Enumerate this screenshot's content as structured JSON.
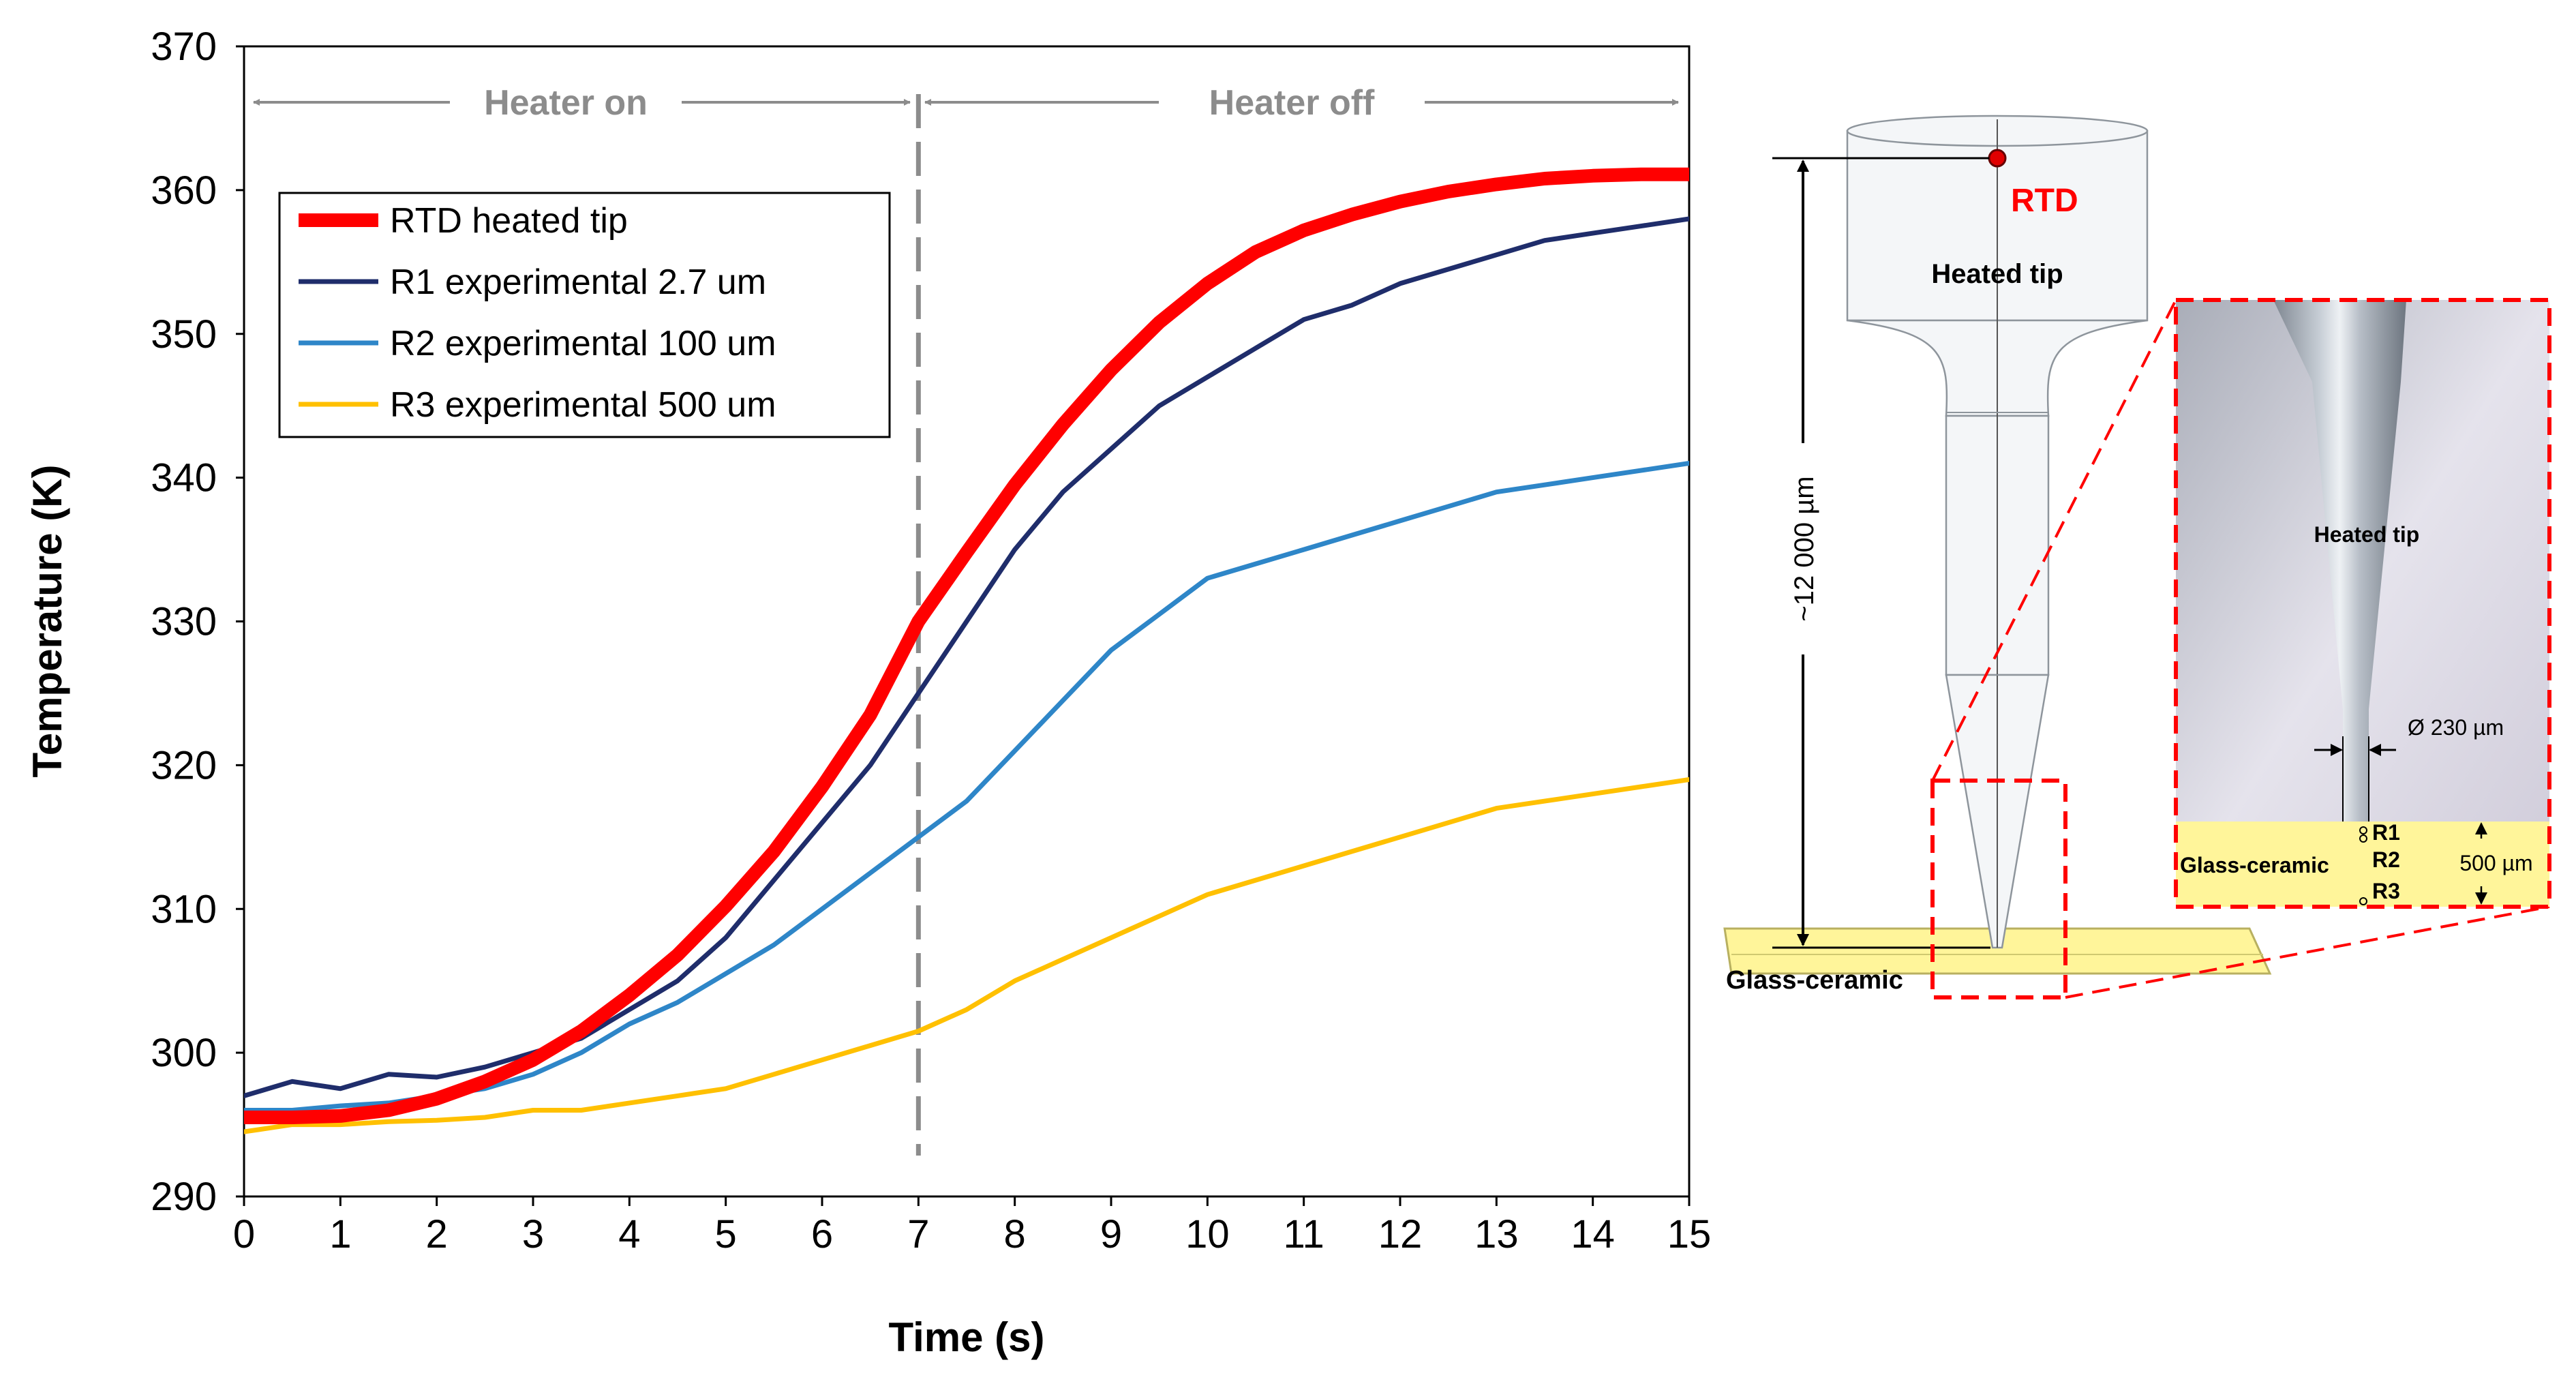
{
  "chart_data": {
    "type": "line",
    "xlabel": "Time (s)",
    "ylabel": "Temperature (K)",
    "xlim": [
      0,
      15
    ],
    "ylim": [
      290,
      370
    ],
    "xticks": [
      "0",
      "1",
      "2",
      "3",
      "4",
      "5",
      "6",
      "7",
      "8",
      "9",
      "10",
      "11",
      "12",
      "13",
      "14",
      "15"
    ],
    "yticks": [
      "290",
      "300",
      "310",
      "320",
      "330",
      "340",
      "350",
      "360",
      "370"
    ],
    "grid": false,
    "legend_position": "top-left",
    "vline_x": 7,
    "phase_labels": {
      "on": "Heater on",
      "off": "Heater off"
    },
    "series": [
      {
        "name": "RTD heated tip",
        "color": "#ff0000",
        "x": [
          0,
          0.5,
          1,
          1.5,
          2,
          2.5,
          3,
          3.5,
          4,
          4.5,
          5,
          5.5,
          6,
          6.5,
          7,
          7.5,
          8,
          8.5,
          9,
          9.5,
          10,
          10.5,
          11,
          11.5,
          12,
          12.5,
          13,
          13.5,
          14,
          14.5,
          15
        ],
        "y": [
          295.5,
          295.5,
          295.6,
          296,
          296.8,
          298,
          299.5,
          301.5,
          304,
          306.8,
          310.2,
          314,
          318.5,
          323.5,
          330,
          334.8,
          339.5,
          343.7,
          347.5,
          350.8,
          353.5,
          355.7,
          357.2,
          358.3,
          359.2,
          359.9,
          360.4,
          360.8,
          361.0,
          361.1,
          361.1
        ]
      },
      {
        "name": "R1 experimental 2.7 um",
        "color": "#1f2d6b",
        "x": [
          0,
          0.5,
          1,
          1.5,
          2,
          2.5,
          3,
          3.5,
          4,
          4.5,
          5,
          5.5,
          6,
          6.5,
          7,
          7.5,
          8,
          8.5,
          9,
          9.5,
          10,
          10.5,
          11,
          11.5,
          12,
          12.5,
          13,
          13.5,
          14,
          14.5,
          15
        ],
        "y": [
          297,
          298,
          297.5,
          298.5,
          298.3,
          299,
          300,
          301,
          303,
          305,
          308,
          312,
          316,
          320,
          325,
          330,
          335,
          339,
          342,
          345,
          347,
          349,
          351,
          352,
          353.5,
          354.5,
          355.5,
          356.5,
          357,
          357.5,
          358
        ]
      },
      {
        "name": "R2 experimental 100 um",
        "color": "#2e86c8",
        "x": [
          0,
          0.5,
          1,
          1.5,
          2,
          2.5,
          3,
          3.5,
          4,
          4.5,
          5,
          5.5,
          6,
          6.5,
          7,
          7.5,
          8,
          8.5,
          9,
          9.5,
          10,
          10.5,
          11,
          11.5,
          12,
          12.5,
          13,
          13.5,
          14,
          14.5,
          15
        ],
        "y": [
          296,
          296,
          296.3,
          296.5,
          297,
          297.5,
          298.5,
          300,
          302,
          303.5,
          305.5,
          307.5,
          310,
          312.5,
          315,
          317.5,
          321,
          324.5,
          328,
          330.5,
          333,
          334,
          335,
          336,
          337,
          338,
          339,
          339.5,
          340,
          340.5,
          341
        ]
      },
      {
        "name": "R3 experimental 500 um",
        "color": "#ffc000",
        "x": [
          0,
          0.5,
          1,
          1.5,
          2,
          2.5,
          3,
          3.5,
          4,
          4.5,
          5,
          5.5,
          6,
          6.5,
          7,
          7.5,
          8,
          8.5,
          9,
          9.5,
          10,
          10.5,
          11,
          11.5,
          12,
          12.5,
          13,
          13.5,
          14,
          14.5,
          15
        ],
        "y": [
          294.5,
          295,
          295,
          295.2,
          295.3,
          295.5,
          296,
          296,
          296.5,
          297,
          297.5,
          298.5,
          299.5,
          300.5,
          301.5,
          303,
          305,
          306.5,
          308,
          309.5,
          311,
          312,
          313,
          314,
          315,
          316,
          317,
          317.5,
          318,
          318.5,
          319
        ]
      }
    ]
  },
  "diagram": {
    "rtd_label": "RTD",
    "heated_tip_label": "Heated tip",
    "length_label": "~12 000 µm",
    "substrate_label": "Glass-ceramic",
    "inset": {
      "heated_tip_label": "Heated tip",
      "diameter_label": "Ø 230 µm",
      "substrate_label": "Glass-ceramic",
      "sensor_labels": [
        "R1",
        "R2",
        "R3"
      ],
      "depth_label": "500 µm",
      "substrate_color": "#fff59a",
      "frame_color": "#ff0000"
    }
  }
}
